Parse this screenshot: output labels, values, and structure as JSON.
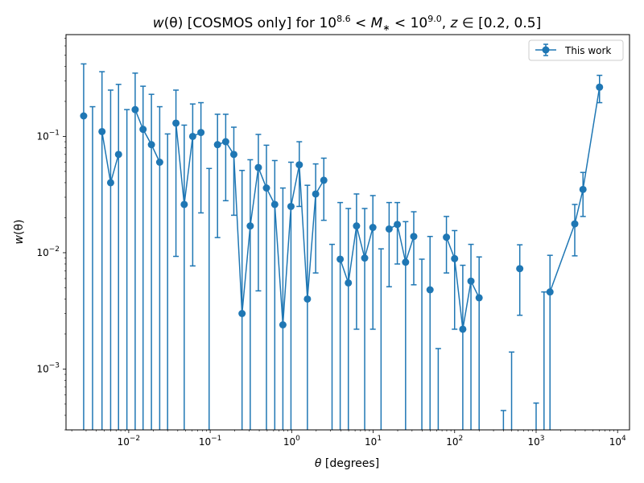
{
  "chart_data": {
    "type": "scatter",
    "title": "w(θ) [COSMOS only] for 10^8.6 < M* < 10^9.0, z ∈ [0.2, 0.5]",
    "title_parts": {
      "w": "w",
      "theta_paren": "(θ)",
      "rest1": " [COSMOS only] for 10",
      "exp1": "8.6",
      "lt1": " < ",
      "M": "M",
      "star": "∗",
      "lt2": " < 10",
      "exp2": "9.0",
      "comma": ", ",
      "z": "z",
      "rest2": " ∈ [0.2, 0.5]"
    },
    "xlabel": "θ [degrees]",
    "xlabel_parts": {
      "theta": "θ",
      "rest": " [degrees]"
    },
    "ylabel": "w(θ)",
    "ylabel_parts": {
      "w": "w",
      "rest": "(θ)"
    },
    "xscale": "log",
    "yscale": "log",
    "xlim": [
      0.0017,
      14000
    ],
    "ylim": [
      0.0003,
      0.75
    ],
    "xticks": [
      {
        "base": "10",
        "exp": "−2",
        "value": 0.01
      },
      {
        "base": "10",
        "exp": "−1",
        "value": 0.1
      },
      {
        "base": "10",
        "exp": "0",
        "value": 1
      },
      {
        "base": "10",
        "exp": "1",
        "value": 10
      },
      {
        "base": "10",
        "exp": "2",
        "value": 100
      },
      {
        "base": "10",
        "exp": "3",
        "value": 1000
      },
      {
        "base": "10",
        "exp": "4",
        "value": 10000
      }
    ],
    "yticks": [
      {
        "base": "10",
        "exp": "−3",
        "value": 0.001
      },
      {
        "base": "10",
        "exp": "−2",
        "value": 0.01
      },
      {
        "base": "10",
        "exp": "−1",
        "value": 0.1
      }
    ],
    "grid": false,
    "legend": {
      "position": "top-right",
      "entries": [
        "This work"
      ]
    },
    "colors": {
      "series": "#1f77b4",
      "axes": "#000000",
      "background": "#ffffff"
    },
    "series": [
      {
        "name": "This work",
        "marker": "circle",
        "line": "solid",
        "points": [
          {
            "x": 0.0028,
            "y": 0.15,
            "lo": null,
            "hi": 0.42
          },
          {
            "x": 0.0036,
            "y": null,
            "lo": null,
            "hi": 0.18
          },
          {
            "x": 0.0047,
            "y": 0.11,
            "lo": null,
            "hi": 0.36
          },
          {
            "x": 0.006,
            "y": 0.04,
            "lo": null,
            "hi": 0.25
          },
          {
            "x": 0.0075,
            "y": 0.07,
            "lo": null,
            "hi": 0.28
          },
          {
            "x": 0.0095,
            "y": null,
            "lo": null,
            "hi": 0.17
          },
          {
            "x": 0.012,
            "y": 0.17,
            "lo": null,
            "hi": 0.35
          },
          {
            "x": 0.015,
            "y": 0.115,
            "lo": null,
            "hi": 0.27
          },
          {
            "x": 0.019,
            "y": 0.085,
            "lo": null,
            "hi": 0.23
          },
          {
            "x": 0.024,
            "y": 0.06,
            "lo": null,
            "hi": 0.18
          },
          {
            "x": 0.03,
            "y": null,
            "lo": null,
            "hi": 0.105
          },
          {
            "x": 0.038,
            "y": 0.13,
            "lo": 0.0093,
            "hi": 0.25
          },
          {
            "x": 0.048,
            "y": 0.026,
            "lo": null,
            "hi": 0.125
          },
          {
            "x": 0.061,
            "y": 0.1,
            "lo": 0.0077,
            "hi": 0.19
          },
          {
            "x": 0.077,
            "y": 0.108,
            "lo": 0.022,
            "hi": 0.195
          },
          {
            "x": 0.097,
            "y": null,
            "lo": null,
            "hi": 0.053
          },
          {
            "x": 0.123,
            "y": 0.085,
            "lo": 0.0135,
            "hi": 0.155
          },
          {
            "x": 0.155,
            "y": 0.09,
            "lo": 0.028,
            "hi": 0.155
          },
          {
            "x": 0.195,
            "y": 0.07,
            "lo": 0.021,
            "hi": 0.12
          },
          {
            "x": 0.246,
            "y": 0.003,
            "lo": null,
            "hi": 0.051
          },
          {
            "x": 0.31,
            "y": 0.017,
            "lo": null,
            "hi": 0.063
          },
          {
            "x": 0.39,
            "y": 0.054,
            "lo": 0.0047,
            "hi": 0.104
          },
          {
            "x": 0.49,
            "y": 0.036,
            "lo": null,
            "hi": 0.084
          },
          {
            "x": 0.62,
            "y": 0.026,
            "lo": null,
            "hi": 0.062
          },
          {
            "x": 0.78,
            "y": 0.0024,
            "lo": null,
            "hi": 0.036
          },
          {
            "x": 0.98,
            "y": 0.025,
            "lo": null,
            "hi": 0.06
          },
          {
            "x": 1.24,
            "y": 0.057,
            "lo": 0.025,
            "hi": 0.09
          },
          {
            "x": 1.56,
            "y": 0.004,
            "lo": null,
            "hi": 0.038
          },
          {
            "x": 1.97,
            "y": 0.032,
            "lo": 0.0067,
            "hi": 0.058
          },
          {
            "x": 2.48,
            "y": 0.042,
            "lo": 0.019,
            "hi": 0.065
          },
          {
            "x": 3.13,
            "y": null,
            "lo": null,
            "hi": 0.0118
          },
          {
            "x": 3.94,
            "y": 0.0088,
            "lo": null,
            "hi": 0.027
          },
          {
            "x": 4.96,
            "y": 0.0055,
            "lo": null,
            "hi": 0.024
          },
          {
            "x": 6.25,
            "y": 0.017,
            "lo": 0.0022,
            "hi": 0.032
          },
          {
            "x": 7.87,
            "y": 0.009,
            "lo": null,
            "hi": 0.024
          },
          {
            "x": 9.92,
            "y": 0.0165,
            "lo": 0.0022,
            "hi": 0.031
          },
          {
            "x": 12.5,
            "y": null,
            "lo": null,
            "hi": 0.0108
          },
          {
            "x": 15.7,
            "y": 0.016,
            "lo": 0.0051,
            "hi": 0.027
          },
          {
            "x": 19.8,
            "y": 0.0175,
            "lo": 0.008,
            "hi": 0.027
          },
          {
            "x": 25.0,
            "y": 0.0083,
            "lo": null,
            "hi": 0.0185
          },
          {
            "x": 31.5,
            "y": 0.0138,
            "lo": 0.0053,
            "hi": 0.0225
          },
          {
            "x": 39.6,
            "y": null,
            "lo": null,
            "hi": 0.0088
          },
          {
            "x": 49.9,
            "y": 0.0048,
            "lo": null,
            "hi": 0.0138
          },
          {
            "x": 62.9,
            "y": null,
            "lo": null,
            "hi": 0.0015
          },
          {
            "x": 79.3,
            "y": 0.0136,
            "lo": 0.0067,
            "hi": 0.0205
          },
          {
            "x": 99.9,
            "y": 0.0089,
            "lo": 0.0022,
            "hi": 0.0155
          },
          {
            "x": 125.9,
            "y": 0.0022,
            "lo": null,
            "hi": 0.0078
          },
          {
            "x": 158.6,
            "y": 0.0057,
            "lo": null,
            "hi": 0.0118
          },
          {
            "x": 199.8,
            "y": 0.0041,
            "lo": null,
            "hi": 0.0092
          },
          {
            "x": 397.0,
            "y": null,
            "lo": null,
            "hi": 0.00044
          },
          {
            "x": 500.0,
            "y": null,
            "lo": null,
            "hi": 0.0014
          },
          {
            "x": 630.0,
            "y": 0.0073,
            "lo": 0.0029,
            "hi": 0.0117
          },
          {
            "x": 1000.0,
            "y": null,
            "lo": null,
            "hi": 0.00051
          },
          {
            "x": 1250.0,
            "y": null,
            "lo": null,
            "hi": 0.0046
          },
          {
            "x": 1480.0,
            "y": 0.0046,
            "lo": null,
            "hi": 0.0095
          },
          {
            "x": 2980.0,
            "y": 0.0177,
            "lo": 0.0094,
            "hi": 0.026
          },
          {
            "x": 3760.0,
            "y": 0.035,
            "lo": 0.0205,
            "hi": 0.049
          },
          {
            "x": 6000.0,
            "y": 0.265,
            "lo": 0.195,
            "hi": 0.335
          }
        ]
      }
    ]
  }
}
